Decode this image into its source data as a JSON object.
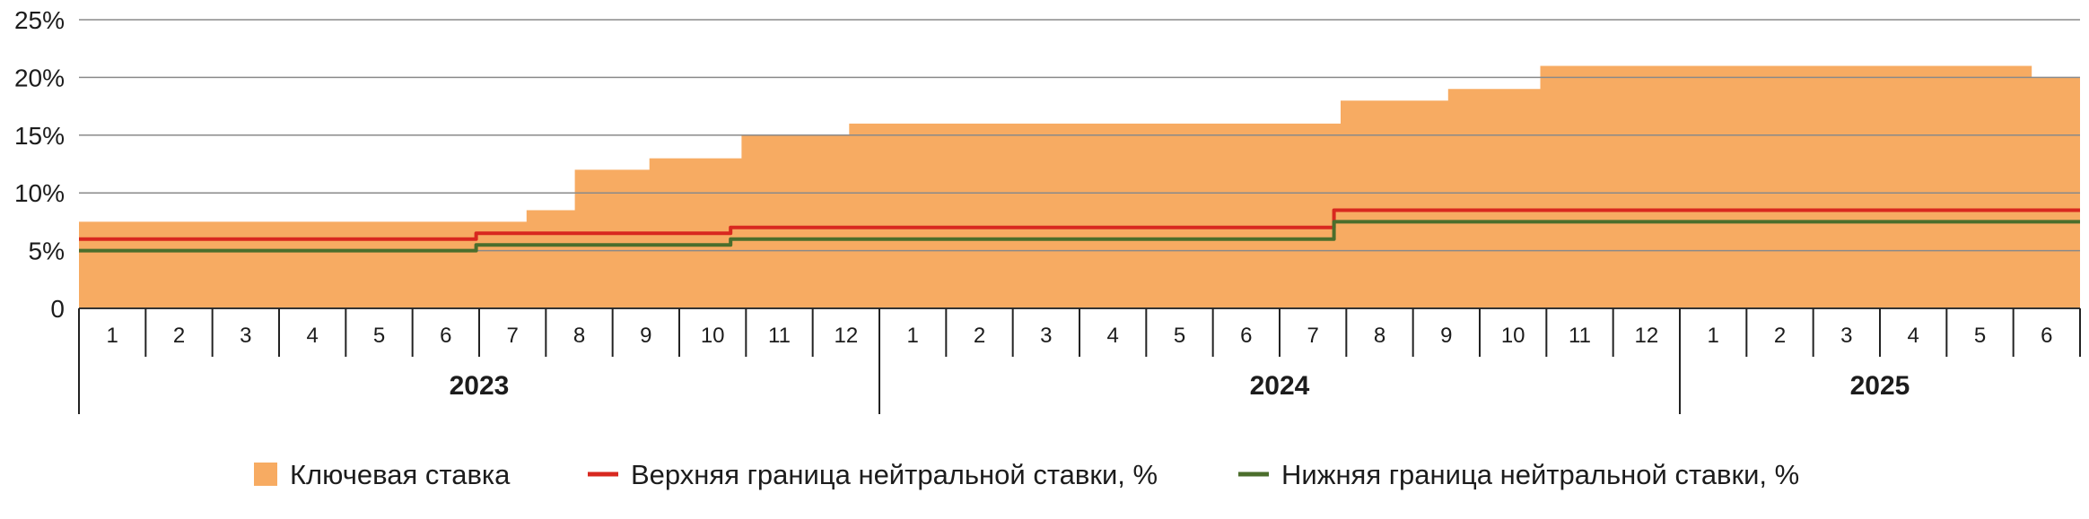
{
  "chart_data": {
    "type": "area",
    "title": "",
    "xlabel": "",
    "ylabel": "",
    "ylim": [
      0,
      25
    ],
    "y_ticks": [
      {
        "value": 0,
        "label": "0"
      },
      {
        "value": 5,
        "label": "5%"
      },
      {
        "value": 10,
        "label": "10%"
      },
      {
        "value": 15,
        "label": "15%"
      },
      {
        "value": 20,
        "label": "20%"
      },
      {
        "value": 25,
        "label": "25%"
      }
    ],
    "grid": true,
    "legend_position": "bottom",
    "x_range": [
      "2023-01-01",
      "2025-07-01"
    ],
    "month_labels": [
      "1",
      "2",
      "3",
      "4",
      "5",
      "6",
      "7",
      "8",
      "9",
      "10",
      "11",
      "12",
      "1",
      "2",
      "3",
      "4",
      "5",
      "6",
      "7",
      "8",
      "9",
      "10",
      "11",
      "12",
      "1",
      "2",
      "3",
      "4",
      "5",
      "6"
    ],
    "years": [
      {
        "label": "2023",
        "months": 12
      },
      {
        "label": "2024",
        "months": 12
      },
      {
        "label": "2025",
        "months": 6
      }
    ],
    "series": [
      {
        "name": "Ключевая ставка",
        "kind": "area",
        "color": "#f7ab62",
        "steps": [
          {
            "from": "2023-01-01",
            "value": 7.5
          },
          {
            "from": "2023-07-24",
            "value": 8.5
          },
          {
            "from": "2023-08-15",
            "value": 12.0
          },
          {
            "from": "2023-09-18",
            "value": 13.0
          },
          {
            "from": "2023-10-30",
            "value": 15.0
          },
          {
            "from": "2023-12-18",
            "value": 16.0
          },
          {
            "from": "2024-07-29",
            "value": 18.0
          },
          {
            "from": "2024-09-16",
            "value": 19.0
          },
          {
            "from": "2024-10-28",
            "value": 21.0
          },
          {
            "from": "2025-06-09",
            "value": 20.0
          }
        ]
      },
      {
        "name": "Верхняя граница нейтральной ставки, %",
        "kind": "line",
        "color": "#d8281f",
        "steps": [
          {
            "from": "2023-01-01",
            "value": 6.0
          },
          {
            "from": "2023-07-01",
            "value": 6.5
          },
          {
            "from": "2023-10-25",
            "value": 7.0
          },
          {
            "from": "2024-07-26",
            "value": 8.5
          }
        ]
      },
      {
        "name": "Нижняя граница нейтральной ставки, %",
        "kind": "line",
        "color": "#4b6e2c",
        "steps": [
          {
            "from": "2023-01-01",
            "value": 5.0
          },
          {
            "from": "2023-07-01",
            "value": 5.5
          },
          {
            "from": "2023-10-25",
            "value": 6.0
          },
          {
            "from": "2024-07-26",
            "value": 7.5
          }
        ]
      }
    ]
  }
}
